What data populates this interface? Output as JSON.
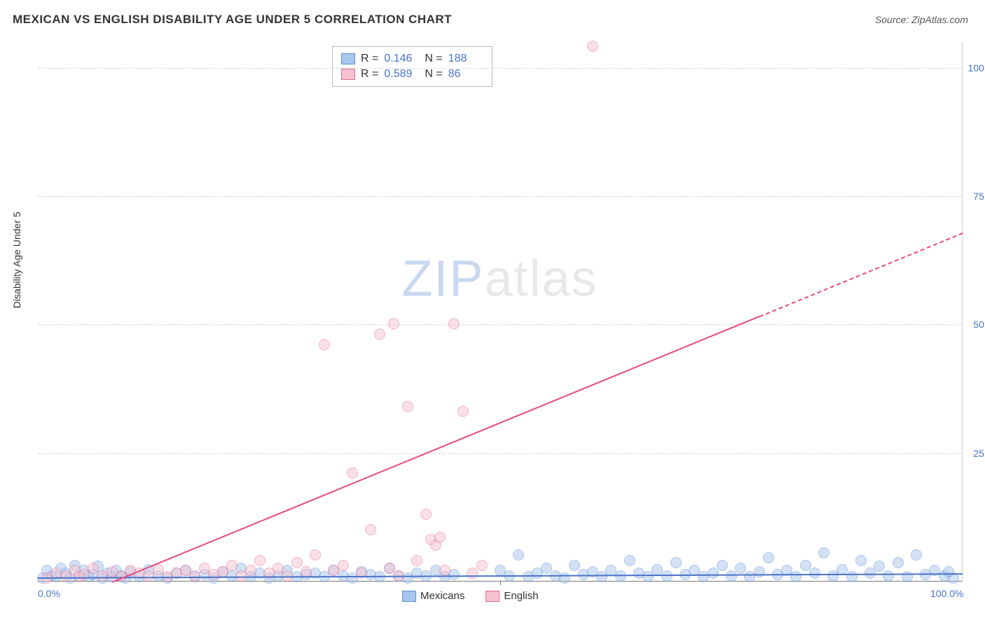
{
  "header": {
    "title": "MEXICAN VS ENGLISH DISABILITY AGE UNDER 5 CORRELATION CHART",
    "source_prefix": "Source: ",
    "source_name": "ZipAtlas.com"
  },
  "chart": {
    "type": "scatter",
    "ylabel": "Disability Age Under 5",
    "xlim": [
      0,
      100
    ],
    "ylim": [
      0,
      105
    ],
    "yticks": [
      25,
      50,
      75,
      100
    ],
    "ytick_labels": [
      "25.0%",
      "50.0%",
      "75.0%",
      "100.0%"
    ],
    "xtick_labels": [
      "0.0%",
      "100.0%"
    ],
    "xtick_positions": [
      0,
      100
    ],
    "xtick_mark_at": 50,
    "background_color": "#ffffff",
    "grid_color": "#d8d8d8",
    "axis_label_color": "#4a74c9",
    "point_radius": 8,
    "point_opacity": 0.5,
    "watermark": {
      "zip": "ZIP",
      "atlas": "atlas"
    },
    "series": [
      {
        "name": "Mexicans",
        "color_fill": "#a8c5ec",
        "color_stroke": "#5b8fd6",
        "R": "0.146",
        "N": "188",
        "trend": {
          "x1": 0,
          "y1": 0.8,
          "x2": 100,
          "y2": 1.6,
          "color": "#4a74c9",
          "dashed_from": 100
        },
        "points": [
          [
            0.5,
            0.5
          ],
          [
            1,
            2
          ],
          [
            1.5,
            1
          ],
          [
            2,
            0.8
          ],
          [
            2.5,
            2.5
          ],
          [
            3,
            1.5
          ],
          [
            3.5,
            0.5
          ],
          [
            4,
            3
          ],
          [
            4.5,
            1
          ],
          [
            5,
            2
          ],
          [
            5.5,
            0.8
          ],
          [
            6,
            1.2
          ],
          [
            6.5,
            2.8
          ],
          [
            7,
            0.5
          ],
          [
            7.5,
            1.5
          ],
          [
            8,
            0.8
          ],
          [
            8.5,
            2
          ],
          [
            9,
            1
          ],
          [
            9.5,
            0.5
          ],
          [
            10,
            1.8
          ],
          [
            11,
            0.8
          ],
          [
            12,
            2.2
          ],
          [
            13,
            1
          ],
          [
            14,
            0.5
          ],
          [
            15,
            1.5
          ],
          [
            16,
            2
          ],
          [
            17,
            0.8
          ],
          [
            18,
            1.2
          ],
          [
            19,
            0.5
          ],
          [
            20,
            1.8
          ],
          [
            21,
            1
          ],
          [
            22,
            2.5
          ],
          [
            23,
            0.8
          ],
          [
            24,
            1.5
          ],
          [
            25,
            0.5
          ],
          [
            26,
            1
          ],
          [
            27,
            2
          ],
          [
            28,
            0.8
          ],
          [
            29,
            1.2
          ],
          [
            30,
            1.5
          ],
          [
            31,
            0.8
          ],
          [
            32,
            2
          ],
          [
            33,
            1
          ],
          [
            34,
            0.5
          ],
          [
            35,
            1.8
          ],
          [
            36,
            1.2
          ],
          [
            37,
            0.8
          ],
          [
            38,
            2.5
          ],
          [
            39,
            1
          ],
          [
            40,
            0.5
          ],
          [
            41,
            1.5
          ],
          [
            42,
            1
          ],
          [
            43,
            2
          ],
          [
            44,
            0.8
          ],
          [
            45,
            1.2
          ],
          [
            50,
            2
          ],
          [
            51,
            1
          ],
          [
            52,
            5
          ],
          [
            53,
            0.8
          ],
          [
            54,
            1.5
          ],
          [
            55,
            2.5
          ],
          [
            56,
            1
          ],
          [
            57,
            0.5
          ],
          [
            58,
            3
          ],
          [
            59,
            1.2
          ],
          [
            60,
            1.8
          ],
          [
            61,
            0.8
          ],
          [
            62,
            2
          ],
          [
            63,
            1
          ],
          [
            64,
            4
          ],
          [
            65,
            1.5
          ],
          [
            66,
            0.8
          ],
          [
            67,
            2.2
          ],
          [
            68,
            1
          ],
          [
            69,
            3.5
          ],
          [
            70,
            1.2
          ],
          [
            71,
            2
          ],
          [
            72,
            0.8
          ],
          [
            73,
            1.5
          ],
          [
            74,
            3
          ],
          [
            75,
            1
          ],
          [
            76,
            2.5
          ],
          [
            77,
            0.8
          ],
          [
            78,
            1.8
          ],
          [
            79,
            4.5
          ],
          [
            80,
            1.2
          ],
          [
            81,
            2
          ],
          [
            82,
            0.8
          ],
          [
            83,
            3
          ],
          [
            84,
            1.5
          ],
          [
            85,
            5.5
          ],
          [
            86,
            1
          ],
          [
            87,
            2.2
          ],
          [
            88,
            0.8
          ],
          [
            89,
            4
          ],
          [
            90,
            1.5
          ],
          [
            91,
            2.8
          ],
          [
            92,
            1
          ],
          [
            93,
            3.5
          ],
          [
            94,
            0.8
          ],
          [
            95,
            5
          ],
          [
            96,
            1.2
          ],
          [
            97,
            2
          ],
          [
            98,
            1
          ],
          [
            99,
            0.5
          ],
          [
            98.5,
            1.8
          ]
        ]
      },
      {
        "name": "English",
        "color_fill": "#f5c3d0",
        "color_stroke": "#e36b94",
        "R": "0.589",
        "N": "86",
        "trend": {
          "x1": 8,
          "y1": 0,
          "x2": 100,
          "y2": 68,
          "color": "#e84a7f",
          "dashed_from": 78
        },
        "points": [
          [
            1,
            0.5
          ],
          [
            2,
            1.5
          ],
          [
            3,
            1
          ],
          [
            4,
            2
          ],
          [
            4.5,
            0.8
          ],
          [
            5,
            1.2
          ],
          [
            6,
            2.5
          ],
          [
            7,
            1
          ],
          [
            8,
            1.8
          ],
          [
            9,
            0.8
          ],
          [
            10,
            2
          ],
          [
            11,
            1.5
          ],
          [
            12,
            1
          ],
          [
            13,
            2.2
          ],
          [
            14,
            0.8
          ],
          [
            15,
            1.5
          ],
          [
            16,
            2
          ],
          [
            17,
            1
          ],
          [
            18,
            2.5
          ],
          [
            19,
            1.2
          ],
          [
            20,
            1.8
          ],
          [
            21,
            3
          ],
          [
            22,
            1
          ],
          [
            23,
            2
          ],
          [
            24,
            4
          ],
          [
            25,
            1.5
          ],
          [
            26,
            2.5
          ],
          [
            27,
            1
          ],
          [
            28,
            3.5
          ],
          [
            29,
            1.8
          ],
          [
            30,
            5
          ],
          [
            31,
            46
          ],
          [
            32,
            2
          ],
          [
            33,
            3
          ],
          [
            34,
            21
          ],
          [
            35,
            1.5
          ],
          [
            36,
            10
          ],
          [
            37,
            48
          ],
          [
            38,
            2.5
          ],
          [
            38.5,
            50
          ],
          [
            39,
            1
          ],
          [
            40,
            34
          ],
          [
            41,
            4
          ],
          [
            42,
            13
          ],
          [
            42.5,
            8
          ],
          [
            43,
            7
          ],
          [
            43.5,
            8.5
          ],
          [
            44,
            2
          ],
          [
            45,
            50
          ],
          [
            46,
            33
          ],
          [
            47,
            1.5
          ],
          [
            48,
            3
          ],
          [
            60,
            104
          ]
        ]
      }
    ],
    "stats_labels": {
      "R": "R =",
      "N": "N ="
    },
    "legend_labels": [
      "Mexicans",
      "English"
    ]
  }
}
